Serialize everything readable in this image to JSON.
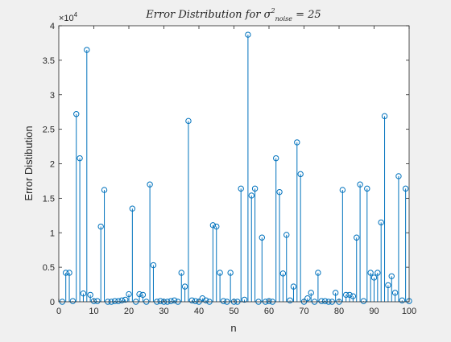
{
  "colors": {
    "stem": "#0072BD",
    "axis": "#262626",
    "plot_bg": "#ffffff",
    "figure_bg": "#f0f0f0"
  },
  "chart_data": {
    "type": "stem",
    "title_prefix": "Error Distribution for",
    "title_sigma": "σ",
    "title_sup": "2",
    "title_sub": "noise",
    "title_suffix": "= 25",
    "xlabel": "n",
    "ylabel": "Error Distibution",
    "exponent_base": "×10",
    "exponent_power": "4",
    "xlim": [
      0,
      100
    ],
    "ylim": [
      0,
      4
    ],
    "xticks": [
      0,
      10,
      20,
      30,
      40,
      50,
      60,
      70,
      80,
      90,
      100
    ],
    "yticks": [
      0,
      0.5,
      1,
      1.5,
      2,
      2.5,
      3,
      3.5,
      4
    ],
    "ytick_labels": [
      "0",
      "0.5",
      "1",
      "1.5",
      "2",
      "2.5",
      "3",
      "3.5",
      "4"
    ],
    "x": [
      1,
      2,
      3,
      4,
      5,
      6,
      7,
      8,
      9,
      10,
      11,
      12,
      13,
      14,
      15,
      16,
      17,
      18,
      19,
      20,
      21,
      22,
      23,
      24,
      25,
      26,
      27,
      28,
      29,
      30,
      31,
      32,
      33,
      34,
      35,
      36,
      37,
      38,
      39,
      40,
      41,
      42,
      43,
      44,
      45,
      46,
      47,
      48,
      49,
      50,
      51,
      52,
      53,
      54,
      55,
      56,
      57,
      58,
      59,
      60,
      61,
      62,
      63,
      64,
      65,
      66,
      67,
      68,
      69,
      70,
      71,
      72,
      73,
      74,
      75,
      76,
      77,
      78,
      79,
      80,
      81,
      82,
      83,
      84,
      85,
      86,
      87,
      88,
      89,
      90,
      91,
      92,
      93,
      94,
      95,
      96,
      97,
      98,
      99,
      100
    ],
    "y": [
      0,
      0.42,
      0.42,
      0.01,
      2.72,
      2.08,
      0.12,
      3.65,
      0.1,
      0.01,
      0.01,
      1.09,
      1.62,
      0,
      0,
      0.01,
      0.01,
      0.02,
      0.03,
      0.11,
      1.35,
      0,
      0.11,
      0.1,
      0,
      1.7,
      0.53,
      0,
      0.01,
      0,
      0,
      0.01,
      0.02,
      0,
      0.42,
      0.22,
      2.62,
      0.02,
      0.01,
      0,
      0.05,
      0.02,
      0,
      1.11,
      1.09,
      0.42,
      0.01,
      0,
      0.42,
      0,
      0,
      1.64,
      0.03,
      3.87,
      1.54,
      1.64,
      0,
      0.93,
      0,
      0.01,
      0,
      2.08,
      1.59,
      0.41,
      0.97,
      0.02,
      0.22,
      2.31,
      1.85,
      0,
      0.05,
      0.13,
      0,
      0.42,
      0.01,
      0.01,
      0,
      0,
      0.13,
      0,
      1.62,
      0.1,
      0.1,
      0.08,
      0.93,
      1.7,
      0.01,
      1.64,
      0.42,
      0.35,
      0.42,
      1.15,
      2.69,
      0.24,
      0.37,
      0.13,
      1.82,
      0.02,
      1.64,
      0.01
    ]
  }
}
